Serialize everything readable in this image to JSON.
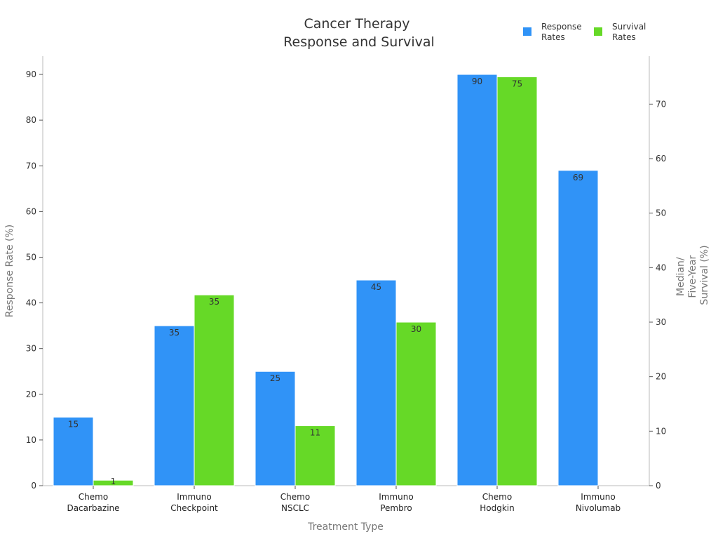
{
  "chart_data": {
    "type": "bar",
    "title_lines": [
      "Cancer Therapy",
      "Response and Survival"
    ],
    "categories": [
      [
        "Chemo",
        "Dacarbazine"
      ],
      [
        "Immuno",
        "Checkpoint"
      ],
      [
        "Chemo",
        "NSCLC"
      ],
      [
        "Immuno",
        "Pembro"
      ],
      [
        "Chemo",
        "Hodgkin"
      ],
      [
        "Immuno",
        "Nivolumab"
      ]
    ],
    "series": [
      {
        "name_lines": [
          "Response",
          "Rates"
        ],
        "axis": "left",
        "color": "#3093f7",
        "values": [
          15,
          35,
          25,
          45,
          90,
          69
        ],
        "labels": [
          "15",
          "35",
          "25",
          "45",
          "90",
          "69"
        ]
      },
      {
        "name_lines": [
          "Survival",
          "Rates"
        ],
        "axis": "right",
        "color": "#66d927",
        "values": [
          1,
          35,
          11,
          30,
          75,
          null
        ],
        "labels": [
          "1",
          "35",
          "11",
          "30",
          "75",
          ""
        ]
      }
    ],
    "xlabel": "Treatment Type",
    "ylabel_left": "Response Rate (%)",
    "ylabel_right_lines": [
      "Median/",
      "Five-Year",
      "Survival (%)"
    ],
    "ylim_left": [
      0,
      94
    ],
    "yticks_left": [
      0,
      10,
      20,
      30,
      40,
      50,
      60,
      70,
      80,
      90
    ],
    "ylim_right": [
      0,
      78.8
    ],
    "yticks_right": [
      0,
      10,
      20,
      30,
      40,
      50,
      60,
      70
    ],
    "grid": false,
    "legend_position": "top-right"
  }
}
